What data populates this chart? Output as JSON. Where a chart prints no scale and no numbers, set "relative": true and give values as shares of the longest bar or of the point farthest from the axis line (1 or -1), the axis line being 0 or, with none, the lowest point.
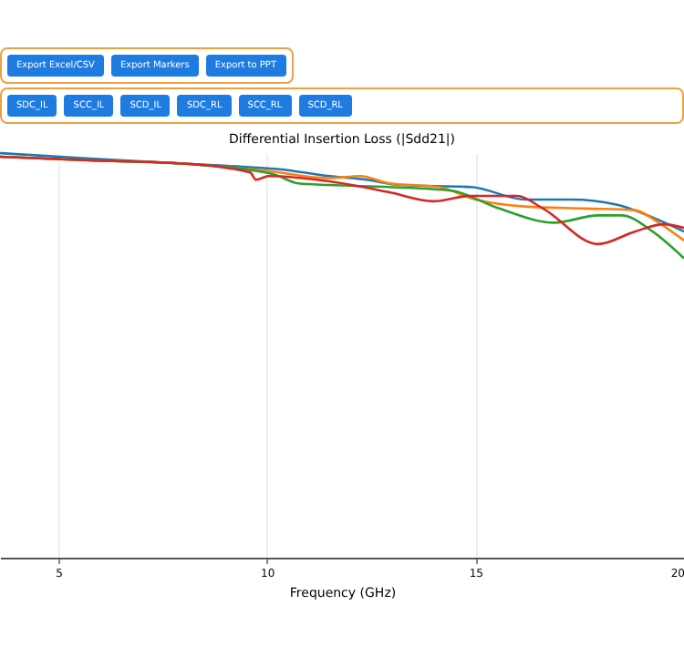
{
  "chart_data": {
    "type": "line",
    "title": "Differential Insertion Loss (|Sdd21|)",
    "xlabel": "Frequency (GHz)",
    "annotations": [
      "Export Excel/CSV",
      "Export Markers",
      "Export to PPT",
      "SDC_IL",
      "SCC_IL",
      "SCD_IL",
      "SDC_RL",
      "SCC_RL",
      "SCD_RL"
    ],
    "relative": true,
    "xlim": [
      3.6,
      20
    ],
    "xticks": [
      5,
      10,
      15,
      20
    ],
    "grid": "x",
    "marker": "none",
    "line_style": "solid",
    "series": [
      {
        "color": "#1f77b4",
        "x": [
          3.6,
          5.66,
          7.98,
          9.6,
          10.3,
          11.5,
          12.4,
          13.2,
          14.9,
          16.2,
          17.3,
          18.4,
          19.25,
          20
        ],
        "values": [
          1.0,
          0.987,
          0.974,
          0.965,
          0.96,
          0.943,
          0.934,
          0.921,
          0.916,
          0.885,
          0.885,
          0.872,
          0.841,
          0.806
        ]
      },
      {
        "color": "#ff7f0e",
        "x": [
          3.6,
          5.66,
          7.98,
          10.0,
          11.5,
          12.24,
          12.94,
          14.12,
          15.0,
          16.18,
          17.63,
          18.82,
          19.39,
          20
        ],
        "values": [
          0.991,
          0.982,
          0.974,
          0.956,
          0.938,
          0.943,
          0.925,
          0.916,
          0.885,
          0.868,
          0.863,
          0.859,
          0.828,
          0.784
        ]
      },
      {
        "color": "#2ca02c",
        "x": [
          3.6,
          5.79,
          7.98,
          9.74,
          10.18,
          10.75,
          11.5,
          12.94,
          14.43,
          15.57,
          16.89,
          17.94,
          18.5,
          19.25,
          20
        ],
        "values": [
          0.991,
          0.982,
          0.974,
          0.956,
          0.947,
          0.925,
          0.921,
          0.916,
          0.907,
          0.863,
          0.828,
          0.846,
          0.846,
          0.806,
          0.74
        ]
      },
      {
        "color": "#d62728",
        "x": [
          3.6,
          5.79,
          7.98,
          9.6,
          9.74,
          10.04,
          11.5,
          12.94,
          13.99,
          14.87,
          16.0,
          16.62,
          17.94,
          18.82,
          19.52,
          20
        ],
        "values": [
          0.991,
          0.982,
          0.974,
          0.952,
          0.934,
          0.943,
          0.93,
          0.903,
          0.881,
          0.894,
          0.894,
          0.863,
          0.775,
          0.806,
          0.824,
          0.815
        ]
      }
    ]
  }
}
